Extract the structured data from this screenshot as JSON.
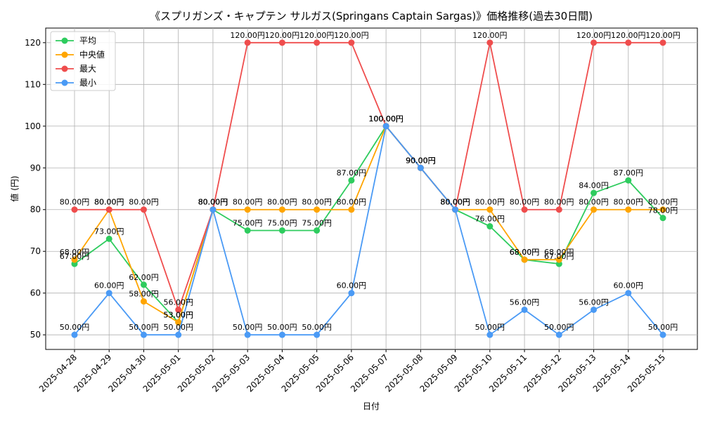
{
  "chart_data": {
    "type": "line",
    "title": "《スプリガンズ・キャプテン サルガス(Springans Captain Sargas)》価格推移(過去30日間)",
    "xlabel": "日付",
    "ylabel": "値 (円)",
    "ylim": [
      46.5,
      123.5
    ],
    "yticks": [
      50,
      60,
      70,
      80,
      90,
      100,
      110,
      120
    ],
    "grid": true,
    "legend_position": "top-left",
    "value_suffix": "円",
    "categories": [
      "2025-04-28",
      "2025-04-29",
      "2025-04-30",
      "2025-05-01",
      "2025-05-02",
      "2025-05-03",
      "2025-05-04",
      "2025-05-05",
      "2025-05-06",
      "2025-05-07",
      "2025-05-08",
      "2025-05-09",
      "2025-05-10",
      "2025-05-11",
      "2025-05-12",
      "2025-05-13",
      "2025-05-14",
      "2025-05-15"
    ],
    "series": [
      {
        "name": "平均",
        "color": "#2ecc5e",
        "values": [
          67,
          73,
          62,
          53,
          80,
          75,
          75,
          75,
          87,
          100,
          90,
          80,
          76,
          68,
          67,
          84,
          87,
          78
        ]
      },
      {
        "name": "中央値",
        "color": "#ffa500",
        "values": [
          68,
          80,
          58,
          53,
          80,
          80,
          80,
          80,
          80,
          100,
          90,
          80,
          80,
          68,
          68,
          80,
          80,
          80
        ]
      },
      {
        "name": "最大",
        "color": "#ef4d4d",
        "values": [
          80,
          80,
          80,
          56,
          80,
          120,
          120,
          120,
          120,
          100,
          90,
          80,
          120,
          80,
          80,
          120,
          120,
          120
        ]
      },
      {
        "name": "最小",
        "color": "#4a9af5",
        "values": [
          50,
          60,
          50,
          50,
          80,
          50,
          50,
          50,
          60,
          100,
          90,
          80,
          50,
          56,
          50,
          56,
          60,
          50
        ]
      }
    ]
  }
}
